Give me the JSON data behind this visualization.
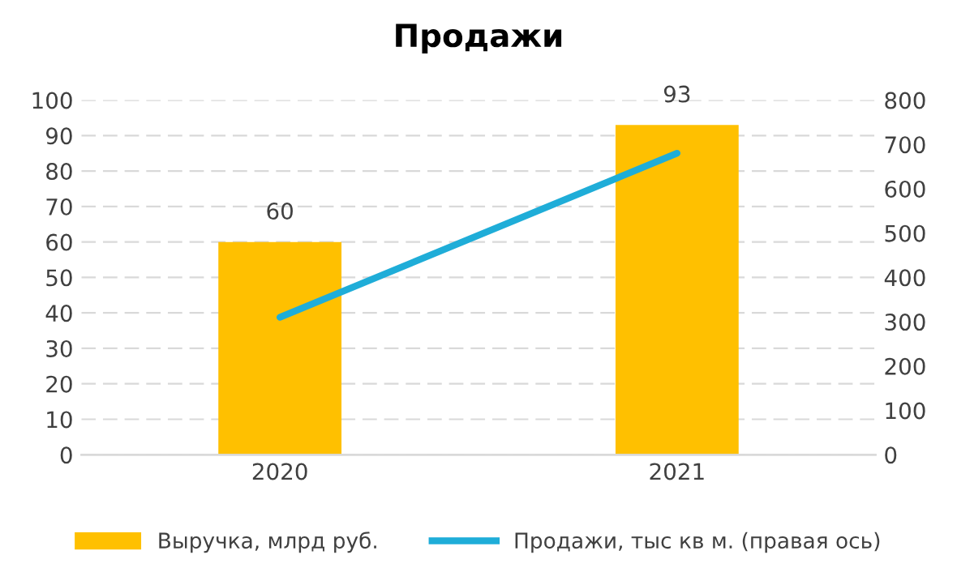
{
  "chart_data": {
    "type": "bar",
    "title": "Продажи",
    "categories": [
      "2020",
      "2021"
    ],
    "series": [
      {
        "name": "Выручка, млрд руб.",
        "color": "#ffc000",
        "values": [
          60,
          93
        ],
        "value_labels": [
          "60",
          "93"
        ]
      },
      {
        "name": "Продажи, тыс кв м. (правая ось)",
        "type": "line",
        "color": "#1fadd8",
        "values": [
          310,
          680
        ],
        "axis": "y2"
      }
    ],
    "ylim": [
      0,
      100
    ],
    "yticks": [
      0,
      10,
      20,
      30,
      40,
      50,
      60,
      70,
      80,
      90,
      100
    ],
    "y2lim": [
      0,
      800
    ],
    "y2ticks": [
      0,
      100,
      200,
      300,
      400,
      500,
      600,
      700,
      800
    ],
    "grid": "y",
    "legend": "bottom",
    "marker": "none",
    "line_style": "solid"
  }
}
